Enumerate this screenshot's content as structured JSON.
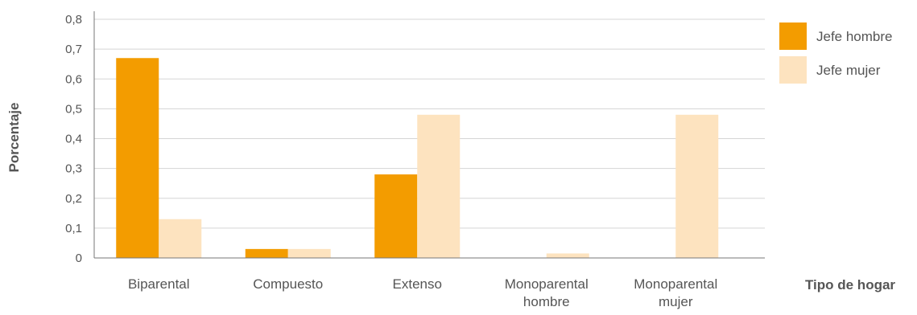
{
  "chart_data": {
    "type": "bar",
    "categories": [
      "Biparental",
      "Compuesto",
      "Extenso",
      "Monoparental hombre",
      "Monoparental mujer"
    ],
    "category_lines": [
      [
        "Biparental"
      ],
      [
        "Compuesto"
      ],
      [
        "Extenso"
      ],
      [
        "Monoparental",
        "hombre"
      ],
      [
        "Monoparental",
        "mujer"
      ]
    ],
    "series": [
      {
        "name": "Jefe hombre",
        "color": "#F39C00",
        "values": [
          0.67,
          0.03,
          0.28,
          0.0,
          0.0
        ]
      },
      {
        "name": "Jefe mujer",
        "color": "#FDE3BF",
        "values": [
          0.13,
          0.03,
          0.48,
          0.015,
          0.48
        ]
      }
    ],
    "y_ticks": [
      "0",
      "0,1",
      "0,2",
      "0,3",
      "0,4",
      "0,5",
      "0,6",
      "0,7",
      "0,8"
    ],
    "ylim": [
      0,
      0.8
    ],
    "ylabel": "Porcentaje",
    "xlabel": "Tipo de hogar",
    "grid": true,
    "legend_position": "top-right",
    "gridline_color": "#D5D5D5",
    "axis_color": "#777777"
  }
}
